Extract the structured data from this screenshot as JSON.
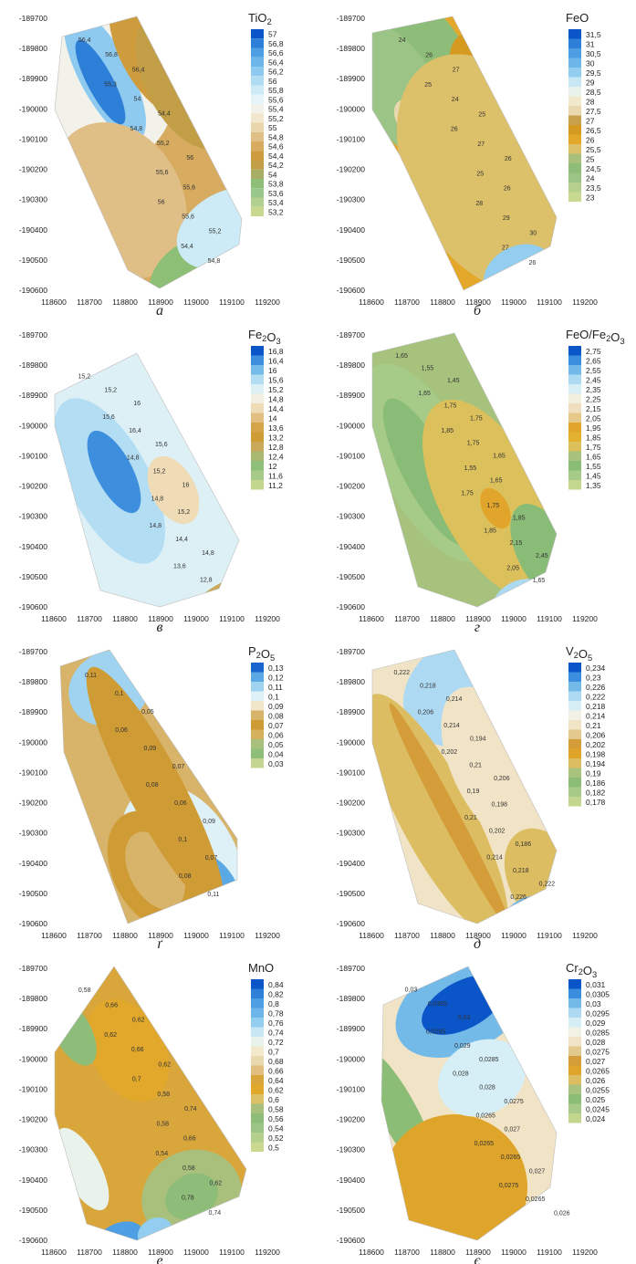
{
  "chart_data": [
    {
      "type": "contour",
      "panel_label": "а",
      "legend_title": "TiO2",
      "legend_values": [
        "57",
        "56,8",
        "56,6",
        "56,4",
        "56,2",
        "56",
        "55,8",
        "55,6",
        "55,4",
        "55,2",
        "55",
        "54,8",
        "54,6",
        "54,4",
        "54,2",
        "54",
        "53,8",
        "53,6",
        "53,4",
        "53,2"
      ],
      "legend_colors": [
        "#0a55c8",
        "#2e7fd8",
        "#4d9ee3",
        "#6db6ea",
        "#8ecaf0",
        "#b0dcf4",
        "#cdebf6",
        "#e4f4f8",
        "#f2f2ea",
        "#f1e7cf",
        "#ead6ad",
        "#e0bf86",
        "#d7ab60",
        "#cf9c3d",
        "#c29e47",
        "#a8ae66",
        "#8ebf77",
        "#99c78b",
        "#b2d08f",
        "#c8d88e"
      ],
      "x_ticks": [
        "118600",
        "118700",
        "118800",
        "118900",
        "119000",
        "119100",
        "119200"
      ],
      "y_ticks": [
        "-189700",
        "-189800",
        "-189900",
        "-190000",
        "-190100",
        "-190200",
        "-190300",
        "-190400",
        "-190500",
        "-190600"
      ],
      "contour_labels": [
        "56,4",
        "56,8",
        "56,4",
        "55,3",
        "54",
        "54,4",
        "54,8",
        "55,2",
        "56",
        "55,6",
        "55,6",
        "56",
        "55,6",
        "55,2",
        "54,4",
        "54,8"
      ]
    },
    {
      "type": "contour",
      "panel_label": "б",
      "legend_title": "FeO",
      "legend_values": [
        "31,5",
        "31",
        "30,5",
        "30",
        "29,5",
        "29",
        "28,5",
        "28",
        "27,5",
        "27",
        "26,5",
        "26",
        "25,5",
        "25",
        "24,5",
        "24",
        "23,5",
        "23"
      ],
      "legend_colors": [
        "#0a55c8",
        "#2e7fd8",
        "#4d9ee3",
        "#6db6ea",
        "#93cdef",
        "#c6e7f3",
        "#e9f3ec",
        "#f2e8cc",
        "#ead9ae",
        "#c9a14c",
        "#d49b20",
        "#e3a82a",
        "#dcc06a",
        "#a9c07a",
        "#8dbd78",
        "#9cc486",
        "#b5cf8d",
        "#c9d98f"
      ],
      "x_ticks": [
        "118600",
        "118700",
        "118800",
        "118900",
        "119000",
        "119100",
        "119200"
      ],
      "y_ticks": [
        "-189700",
        "-189800",
        "-189900",
        "-190000",
        "-190100",
        "-190200",
        "-190300",
        "-190400",
        "-190500",
        "-190600"
      ],
      "contour_labels": [
        "24",
        "26",
        "27",
        "25",
        "24",
        "25",
        "26",
        "27",
        "26",
        "25",
        "26",
        "28",
        "29",
        "30",
        "27",
        "26"
      ]
    },
    {
      "type": "contour",
      "panel_label": "в",
      "legend_title": "Fe2O3",
      "legend_values": [
        "16,8",
        "16,4",
        "16",
        "15,6",
        "15,2",
        "14,8",
        "14,4",
        "14",
        "13,6",
        "13,2",
        "12,8",
        "12,4",
        "12",
        "11,6",
        "11,2"
      ],
      "legend_colors": [
        "#0a55c8",
        "#3d8fdd",
        "#75bbe9",
        "#b3ddf3",
        "#dcf0f6",
        "#f3efe2",
        "#efdcb6",
        "#e2bf80",
        "#d5a448",
        "#cf9c36",
        "#c9a85a",
        "#a8b870",
        "#8dbe7a",
        "#a7ca88",
        "#c3d68e"
      ],
      "x_ticks": [
        "118600",
        "118700",
        "118800",
        "118900",
        "119000",
        "119100",
        "119200"
      ],
      "y_ticks": [
        "-189700",
        "-189800",
        "-189900",
        "-190000",
        "-190100",
        "-190200",
        "-190300",
        "-190400",
        "-190500",
        "-190600"
      ],
      "contour_labels": [
        "15,2",
        "15,2",
        "16",
        "15,6",
        "16,4",
        "15,6",
        "14,8",
        "15,2",
        "16",
        "14,8",
        "15,2",
        "14,8",
        "14,4",
        "14,8",
        "13,6",
        "12,8"
      ]
    },
    {
      "type": "contour",
      "panel_label": "г",
      "legend_title": "FeO/Fe2O3",
      "legend_values": [
        "2,75",
        "2,65",
        "2,55",
        "2,45",
        "2,35",
        "2,25",
        "2,15",
        "2,05",
        "1,95",
        "1,85",
        "1,75",
        "1,65",
        "1,55",
        "1,45",
        "1,35"
      ],
      "legend_colors": [
        "#0a55c8",
        "#3b8edd",
        "#72b9e9",
        "#acdaf2",
        "#d7eef5",
        "#f3efdf",
        "#efdfbd",
        "#e6c889",
        "#e0a52a",
        "#e3b02f",
        "#dcc05b",
        "#a6c27c",
        "#89bc77",
        "#a6ca88",
        "#c4d78e"
      ],
      "x_ticks": [
        "118600",
        "118700",
        "118800",
        "118900",
        "119000",
        "119100",
        "119200"
      ],
      "y_ticks": [
        "-189700",
        "-189800",
        "-189900",
        "-190000",
        "-190100",
        "-190200",
        "-190300",
        "-190400",
        "-190500",
        "-190600"
      ],
      "contour_labels": [
        "1,65",
        "1,55",
        "1,45",
        "1,65",
        "1,75",
        "1,75",
        "1,85",
        "1,75",
        "1,65",
        "1,55",
        "1,65",
        "1,75",
        "1,75",
        "1,85",
        "1,85",
        "2,15",
        "2,45",
        "2,05",
        "1,65"
      ]
    },
    {
      "type": "contour",
      "panel_label": "ґ",
      "legend_title": "P2O5",
      "legend_values": [
        "0,13",
        "0,12",
        "0,11",
        "0,1",
        "0,09",
        "0,08",
        "0,07",
        "0,06",
        "0,05",
        "0,04",
        "0,03"
      ],
      "legend_colors": [
        "#1a66cf",
        "#5aa8e4",
        "#9fd3f0",
        "#def1f6",
        "#f1e6c9",
        "#d8b36a",
        "#cf9b34",
        "#d6b15d",
        "#a9c07d",
        "#8fbe7b",
        "#c3d58e"
      ],
      "x_ticks": [
        "118600",
        "118700",
        "118800",
        "118900",
        "119000",
        "119100",
        "119200"
      ],
      "y_ticks": [
        "-189700",
        "-189800",
        "-189900",
        "-190000",
        "-190100",
        "-190200",
        "-190300",
        "-190400",
        "-190500",
        "-190600"
      ],
      "contour_labels": [
        "0,11",
        "0,1",
        "0,05",
        "0,06",
        "0,09",
        "0,07",
        "0,08",
        "0,06",
        "0,09",
        "0,1",
        "0,07",
        "0,08",
        "0,11"
      ]
    },
    {
      "type": "contour",
      "panel_label": "д",
      "legend_title": "V2O5",
      "legend_values": [
        "0,234",
        "0,23",
        "0,226",
        "0,222",
        "0,218",
        "0,214",
        "0,21",
        "0,206",
        "0,202",
        "0,198",
        "0,194",
        "0,19",
        "0,186",
        "0,182",
        "0,178"
      ],
      "legend_colors": [
        "#0a55c8",
        "#3b8edd",
        "#73bae9",
        "#add9f2",
        "#d6eef5",
        "#f2f1e5",
        "#f1e4c6",
        "#e4c98f",
        "#d49d3a",
        "#dfa52a",
        "#dcbd62",
        "#a9c27e",
        "#8cbd77",
        "#a7ca88",
        "#c3d68e"
      ],
      "x_ticks": [
        "118600",
        "118700",
        "118800",
        "118900",
        "119000",
        "119100",
        "119200"
      ],
      "y_ticks": [
        "-189700",
        "-189800",
        "-189900",
        "-190000",
        "-190100",
        "-190200",
        "-190300",
        "-190400",
        "-190500",
        "-190600"
      ],
      "contour_labels": [
        "0,222",
        "0,218",
        "0,214",
        "0,206",
        "0,214",
        "0,194",
        "0,202",
        "0,21",
        "0,206",
        "0,19",
        "0,198",
        "0,21",
        "0,202",
        "0,186",
        "0,214",
        "0,218",
        "0,222",
        "0,226"
      ]
    },
    {
      "type": "contour",
      "panel_label": "е",
      "legend_title": "MnO",
      "legend_values": [
        "0,84",
        "0,82",
        "0,8",
        "0,78",
        "0,76",
        "0,74",
        "0,72",
        "0,7",
        "0,68",
        "0,66",
        "0,64",
        "0,62",
        "0,6",
        "0,58",
        "0,56",
        "0,54",
        "0,52",
        "0,5"
      ],
      "legend_colors": [
        "#0a55c8",
        "#2e7fd8",
        "#4d9ee3",
        "#6db6ea",
        "#93cdef",
        "#c6e7f3",
        "#e9f3ec",
        "#f2e8cc",
        "#ead9ae",
        "#e0bf80",
        "#d9a63c",
        "#e1a82b",
        "#dcc168",
        "#a9c07c",
        "#8dbd78",
        "#9cc486",
        "#b5cf8d",
        "#c9d98f"
      ],
      "x_ticks": [
        "118600",
        "118700",
        "118800",
        "118900",
        "119000",
        "119100",
        "119200"
      ],
      "y_ticks": [
        "-189700",
        "-189800",
        "-189900",
        "-190000",
        "-190100",
        "-190200",
        "-190300",
        "-190400",
        "-190500",
        "-190600"
      ],
      "contour_labels": [
        "0,58",
        "0,66",
        "0,62",
        "0,62",
        "0,66",
        "0,62",
        "0,7",
        "0,58",
        "0,74",
        "0,58",
        "0,66",
        "0,54",
        "0,58",
        "0,62",
        "0,78",
        "0,74"
      ]
    },
    {
      "type": "contour",
      "panel_label": "є",
      "legend_title": "Cr2O3",
      "legend_values": [
        "0,031",
        "0,0305",
        "0,03",
        "0,0295",
        "0,029",
        "0,0285",
        "0,028",
        "0,0275",
        "0,027",
        "0,0265",
        "0,026",
        "0,0255",
        "0,025",
        "0,0245",
        "0,024"
      ],
      "legend_colors": [
        "#0a55c8",
        "#3b8edd",
        "#73bae9",
        "#add9f2",
        "#d6eef5",
        "#f2f1e5",
        "#f1e4c6",
        "#e4c98f",
        "#d49d3a",
        "#dfa52a",
        "#dcbd62",
        "#a9c27e",
        "#8cbd77",
        "#a7ca88",
        "#c3d68e"
      ],
      "x_ticks": [
        "118600",
        "118700",
        "118800",
        "118900",
        "119000",
        "119100",
        "119200"
      ],
      "y_ticks": [
        "-189700",
        "-189800",
        "-189900",
        "-190000",
        "-190100",
        "-190200",
        "-190300",
        "-190400",
        "-190500",
        "-190600"
      ],
      "contour_labels": [
        "0,03",
        "0,0305",
        "0,03",
        "0,0295",
        "0,029",
        "0,0285",
        "0,028",
        "0,028",
        "0,0275",
        "0,0265",
        "0,027",
        "0,0265",
        "0,0265",
        "0,027",
        "0,0275",
        "0,0265",
        "0,026"
      ]
    }
  ]
}
